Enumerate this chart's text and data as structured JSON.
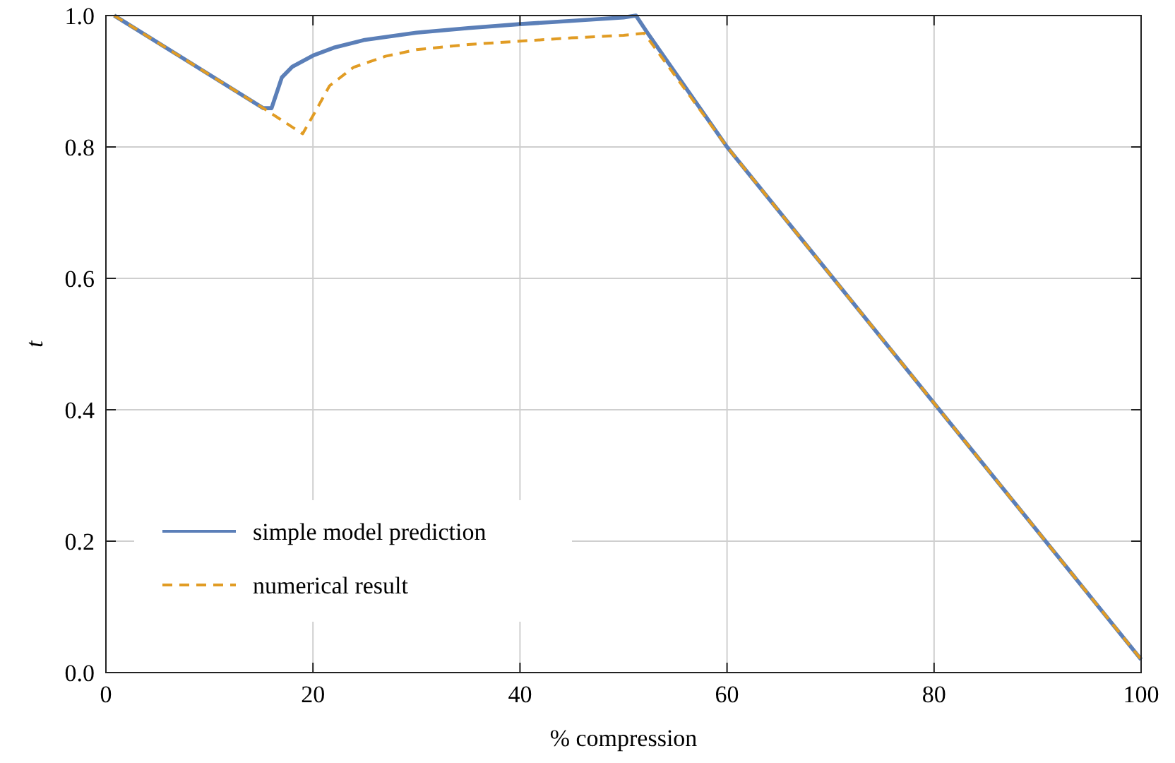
{
  "chart_data": {
    "type": "line",
    "xlabel": "% compression",
    "ylabel": "t",
    "xlim": [
      0,
      100
    ],
    "ylim": [
      0,
      1
    ],
    "xticks": [
      0,
      20,
      40,
      60,
      80,
      100
    ],
    "yticks": [
      {
        "value": 0,
        "label": "0.0"
      },
      0.2,
      0.4,
      0.6,
      0.8,
      {
        "value": 1,
        "label": "1.0"
      }
    ],
    "grid": true,
    "legend": "bottom left",
    "series": [
      {
        "name": "simple model prediction",
        "color": "#5b7fb8",
        "line_style": "solid",
        "x": [
          0.8,
          15.2,
          16,
          17,
          18,
          20,
          22,
          25,
          30,
          35,
          40,
          45,
          50,
          51.2,
          52.3,
          60,
          70,
          80,
          90,
          100
        ],
        "values": [
          1,
          0.859,
          0.859,
          0.906,
          0.922,
          0.939,
          0.951,
          0.963,
          0.974,
          0.981,
          0.987,
          0.992,
          0.997,
          1,
          0.974,
          0.8,
          0.605,
          0.41,
          0.215,
          0.02
        ]
      },
      {
        "name": "numerical result",
        "color": "#e19c24",
        "line_style": "dashed",
        "x": [
          0.8,
          15.2,
          19,
          20.2,
          21.6,
          23.9,
          27,
          30,
          35,
          40,
          45,
          50,
          52,
          60,
          70,
          80,
          90,
          100
        ],
        "values": [
          1,
          0.859,
          0.82,
          0.853,
          0.893,
          0.921,
          0.938,
          0.948,
          0.956,
          0.961,
          0.966,
          0.97,
          0.973,
          0.8,
          0.605,
          0.41,
          0.215,
          0.02
        ]
      }
    ]
  }
}
